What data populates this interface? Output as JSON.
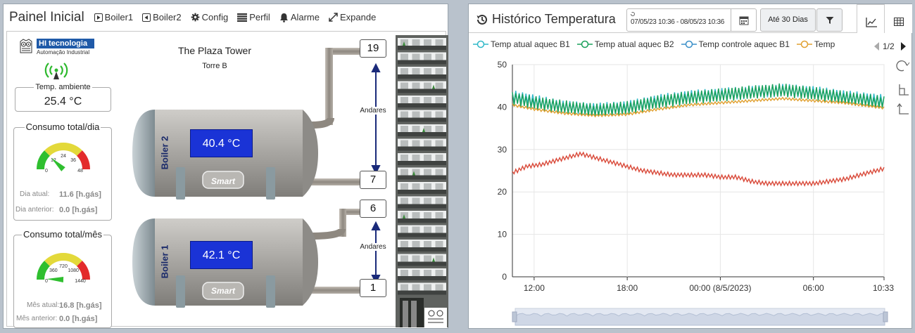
{
  "left": {
    "title": "Painel Inicial",
    "nav": [
      {
        "label": "Boiler1",
        "icon": "play-square-icon"
      },
      {
        "label": "Boiler2",
        "icon": "back-square-icon"
      },
      {
        "label": "Config",
        "icon": "gear-icon"
      },
      {
        "label": "Perfil",
        "icon": "list-icon"
      },
      {
        "label": "Alarme",
        "icon": "bell-icon"
      },
      {
        "label": "Expande",
        "icon": "expand-icon"
      }
    ],
    "logo": {
      "name": "HI tecnologia",
      "sub": "Automação Industrial"
    },
    "ambient": {
      "label": "Temp. ambiente",
      "value": "25.4 °C"
    },
    "daily": {
      "title": "Consumo total/dia",
      "ticks": [
        "0",
        "12",
        "24",
        "36",
        "48"
      ],
      "gauge_value": 11.6,
      "gauge_max": 48,
      "current_label": "Dia atual:",
      "current_value": "11.6 [h.gás]",
      "previous_label": "Dia anterior:",
      "previous_value": "0.0 [h.gás]"
    },
    "monthly": {
      "title": "Consumo total/mês",
      "ticks": [
        "0",
        "360",
        "720",
        "1080",
        "1440"
      ],
      "gauge_value": 16.8,
      "gauge_max": 1440,
      "current_label": "Mês atual:",
      "current_value": "16.8 [h.gás]",
      "previous_label": "Mês anterior:",
      "previous_value": "0.0 [h.gás]"
    },
    "building": {
      "name": "The Plaza Tower",
      "tower": "Torre B"
    },
    "boilers": [
      {
        "name": "Boiler 2",
        "temp": "40.4 °C",
        "badge": "Smart",
        "floor_top": "19",
        "floor_bottom": "7",
        "range_label": "Andares"
      },
      {
        "name": "Boiler 1",
        "temp": "42.1 °C",
        "badge": "Smart",
        "floor_top": "6",
        "floor_bottom": "1",
        "range_label": "Andares"
      }
    ],
    "colors": {
      "display": "#1a33d6",
      "tank": "#a8a6a2",
      "pipe": "#8e8880",
      "gauge_green": "#2fbf2f",
      "gauge_yellow": "#e3d93a",
      "gauge_red": "#e32b2b"
    }
  },
  "right": {
    "title": "Histórico Temperatura",
    "date_range": "07/05/23 10:36 - 08/05/23 10:36",
    "range_button": "Até 30 Dias",
    "pager": "1/2",
    "legend": [
      {
        "name": "Temp atual aquec B1",
        "color": "#2fb8c8"
      },
      {
        "name": "Temp atual aquec B2",
        "color": "#1aa05a"
      },
      {
        "name": "Temp controle aquec B1",
        "color": "#3a8fc8"
      },
      {
        "name": "Temp",
        "color": "#e0a030"
      }
    ]
  },
  "chart_data": {
    "type": "line",
    "x_ticks": [
      "12:00",
      "18:00",
      "00:00 (8/5/2023)",
      "06:00",
      "10:33"
    ],
    "x_tick_hours": [
      12,
      18,
      24,
      30,
      34.55
    ],
    "xlim_hours": [
      10.6,
      34.55
    ],
    "ylim": [
      0,
      50
    ],
    "y_ticks": [
      0,
      10,
      20,
      30,
      40,
      50
    ],
    "grid": true,
    "series": [
      {
        "name": "Temp atual aquec B1",
        "color": "#2fb8c8",
        "oscillation": 1.5,
        "points": [
          [
            10.6,
            42.5
          ],
          [
            12,
            41.5
          ],
          [
            14,
            40
          ],
          [
            16,
            39.5
          ],
          [
            18,
            40
          ],
          [
            20,
            41.5
          ],
          [
            22,
            42.5
          ],
          [
            24,
            43
          ],
          [
            26,
            43.5
          ],
          [
            28,
            44
          ],
          [
            30,
            43.5
          ],
          [
            32,
            42.5
          ],
          [
            34.55,
            41.5
          ]
        ]
      },
      {
        "name": "Temp atual aquec B2",
        "color": "#1aa05a",
        "oscillation": 1.6,
        "points": [
          [
            10.6,
            42
          ],
          [
            12,
            41
          ],
          [
            14,
            40
          ],
          [
            16,
            39.2
          ],
          [
            18,
            39.8
          ],
          [
            20,
            41.2
          ],
          [
            22,
            42.2
          ],
          [
            24,
            42.8
          ],
          [
            26,
            43.5
          ],
          [
            28,
            44
          ],
          [
            30,
            43.2
          ],
          [
            32,
            42.2
          ],
          [
            34.55,
            41
          ]
        ]
      },
      {
        "name": "Temp",
        "color": "#e0a030",
        "oscillation": 0.3,
        "points": [
          [
            10.6,
            40.5
          ],
          [
            12,
            39.5
          ],
          [
            14,
            38.5
          ],
          [
            16,
            38
          ],
          [
            18,
            38.3
          ],
          [
            20,
            39.5
          ],
          [
            22,
            40.5
          ],
          [
            24,
            41
          ],
          [
            26,
            41.5
          ],
          [
            28,
            42
          ],
          [
            30,
            41.5
          ],
          [
            32,
            41
          ],
          [
            34.55,
            39.8
          ]
        ]
      },
      {
        "name": "",
        "color": "#d94a3a",
        "oscillation": 0.5,
        "points": [
          [
            10.6,
            24.5
          ],
          [
            11.5,
            26
          ],
          [
            12.5,
            26.5
          ],
          [
            14,
            28
          ],
          [
            15,
            29
          ],
          [
            16,
            28
          ],
          [
            17,
            27
          ],
          [
            18,
            26
          ],
          [
            19,
            25
          ],
          [
            20,
            24.5
          ],
          [
            21,
            24
          ],
          [
            23,
            24
          ],
          [
            24,
            23.5
          ],
          [
            25,
            23.5
          ],
          [
            26,
            22.5
          ],
          [
            27,
            22
          ],
          [
            28,
            22
          ],
          [
            29,
            22
          ],
          [
            30,
            22
          ],
          [
            31,
            22.5
          ],
          [
            32,
            23
          ],
          [
            33,
            24
          ],
          [
            34.55,
            25.5
          ]
        ]
      }
    ]
  }
}
